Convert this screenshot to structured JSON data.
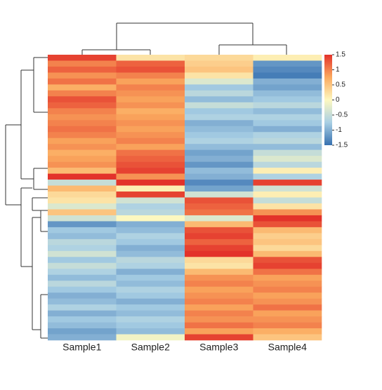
{
  "chart_data": {
    "type": "heatmap",
    "categories": [
      "Sample1",
      "Sample2",
      "Sample3",
      "Sample4"
    ],
    "colors": [
      "#3670b0",
      "#a9cfe4",
      "#fdf8c0",
      "#fbaa5f",
      "#e3322a"
    ],
    "zlim": [
      -1.5,
      1.5
    ],
    "zticks": [
      1.5,
      1,
      0.5,
      0,
      -0.5,
      -1,
      -1.5
    ],
    "values": [
      [
        1.4,
        0.2,
        0.3,
        0.1
      ],
      [
        1.0,
        1.2,
        0.4,
        -1.2
      ],
      [
        1.2,
        1.3,
        0.5,
        -1.3
      ],
      [
        0.9,
        1.0,
        0.2,
        -1.4
      ],
      [
        1.1,
        0.8,
        -0.3,
        -1.0
      ],
      [
        0.7,
        1.0,
        -0.8,
        -1.1
      ],
      [
        1.0,
        0.9,
        -0.6,
        -0.9
      ],
      [
        1.3,
        0.8,
        -0.9,
        -0.8
      ],
      [
        1.2,
        0.9,
        -0.5,
        -0.6
      ],
      [
        1.0,
        0.7,
        -0.8,
        -0.9
      ],
      [
        0.9,
        0.8,
        -0.7,
        -0.7
      ],
      [
        1.0,
        0.9,
        -1.0,
        -0.8
      ],
      [
        1.1,
        0.8,
        -0.9,
        -1.0
      ],
      [
        1.0,
        0.9,
        -0.8,
        -0.7
      ],
      [
        0.8,
        1.0,
        -0.7,
        -0.6
      ],
      [
        0.9,
        0.8,
        -0.9,
        -0.9
      ],
      [
        0.7,
        1.1,
        -1.1,
        -0.5
      ],
      [
        0.8,
        1.2,
        -1.0,
        -0.3
      ],
      [
        0.9,
        1.3,
        -1.2,
        -0.6
      ],
      [
        0.6,
        1.4,
        -0.9,
        0.1
      ],
      [
        1.5,
        0.9,
        -1.0,
        -0.7
      ],
      [
        -0.5,
        1.5,
        -1.3,
        1.4
      ],
      [
        0.6,
        0.1,
        -1.1,
        -0.4
      ],
      [
        0.3,
        1.4,
        -0.4,
        0.1
      ],
      [
        0.2,
        -0.4,
        1.3,
        -0.5
      ],
      [
        -0.3,
        -0.7,
        1.2,
        0.2
      ],
      [
        0.5,
        -0.6,
        1.1,
        0.9
      ],
      [
        -0.4,
        0.0,
        -0.3,
        1.5
      ],
      [
        -1.2,
        -1.0,
        0.6,
        1.3
      ],
      [
        -0.8,
        -0.9,
        1.3,
        0.6
      ],
      [
        -0.9,
        -0.7,
        1.4,
        0.4
      ],
      [
        -0.6,
        -0.8,
        1.2,
        0.5
      ],
      [
        -0.7,
        -1.0,
        1.4,
        0.3
      ],
      [
        -0.4,
        -0.9,
        1.5,
        0.6
      ],
      [
        -0.8,
        -0.6,
        0.3,
        1.3
      ],
      [
        -0.5,
        -0.7,
        0.2,
        1.4
      ],
      [
        -0.7,
        -1.0,
        0.6,
        1.1
      ],
      [
        -0.9,
        -0.8,
        0.9,
        0.8
      ],
      [
        -0.6,
        -0.9,
        1.0,
        0.9
      ],
      [
        -0.8,
        -0.7,
        0.8,
        1.0
      ],
      [
        -1.0,
        -0.8,
        0.9,
        0.8
      ],
      [
        -0.9,
        -1.0,
        1.0,
        0.9
      ],
      [
        -0.7,
        -0.8,
        0.8,
        1.1
      ],
      [
        -1.0,
        -0.9,
        1.0,
        0.8
      ],
      [
        -0.8,
        -0.7,
        0.9,
        0.9
      ],
      [
        -0.9,
        -0.8,
        1.1,
        1.0
      ],
      [
        -1.1,
        -0.9,
        0.8,
        0.7
      ],
      [
        -1.0,
        -0.1,
        1.4,
        0.5
      ]
    ]
  }
}
